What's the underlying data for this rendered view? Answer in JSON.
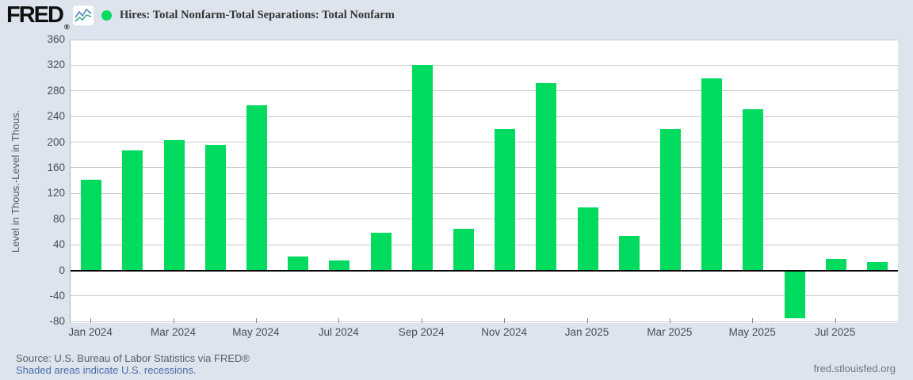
{
  "header": {
    "logo": "FRED",
    "registered": "®",
    "series_title": "Hires: Total Nonfarm-Total Separations: Total Nonfarm"
  },
  "chart_data": {
    "type": "bar",
    "title": "Hires: Total Nonfarm-Total Separations: Total Nonfarm",
    "xlabel": "",
    "ylabel": "Level in Thous.-Level in Thous.",
    "ylim": [
      -82,
      360
    ],
    "yticks": [
      360,
      320,
      280,
      240,
      200,
      160,
      120,
      80,
      40,
      0,
      -40,
      -80
    ],
    "grid": true,
    "legend_position": "top-left",
    "bar_color": "#00da5e",
    "categories": [
      "Jan 2024",
      "Feb 2024",
      "Mar 2024",
      "Apr 2024",
      "May 2024",
      "Jun 2024",
      "Jul 2024",
      "Aug 2024",
      "Sep 2024",
      "Oct 2024",
      "Nov 2024",
      "Dec 2024",
      "Jan 2025",
      "Feb 2025",
      "Mar 2025",
      "Apr 2025",
      "May 2025",
      "Jun 2025",
      "Jul 2025",
      "Aug 2025"
    ],
    "values": [
      142,
      187,
      203,
      196,
      257,
      22,
      16,
      59,
      320,
      65,
      220,
      292,
      98,
      54,
      221,
      300,
      251,
      -74,
      18,
      13
    ],
    "xtick_labels": [
      "Jan 2024",
      "Mar 2024",
      "May 2024",
      "Jul 2024",
      "Sep 2024",
      "Nov 2024",
      "Jan 2025",
      "Mar 2025",
      "May 2025",
      "Jul 2025"
    ],
    "xtick_every": 2
  },
  "footer": {
    "source": "Source: U.S. Bureau of Labor Statistics via FRED®",
    "recession_note": "Shaded areas indicate U.S. recessions.",
    "watermark": "fred.stlouisfed.org"
  },
  "colors": {
    "background": "#dde4ee",
    "plot_background": "#ffffff",
    "bar": "#00da5e",
    "gridline": "#cbcbcb",
    "zero_line": "#000000",
    "axis_text": "#474d59",
    "source_text": "#57606a",
    "link_text": "#4a6da7",
    "watermark_text": "#6b7680"
  }
}
